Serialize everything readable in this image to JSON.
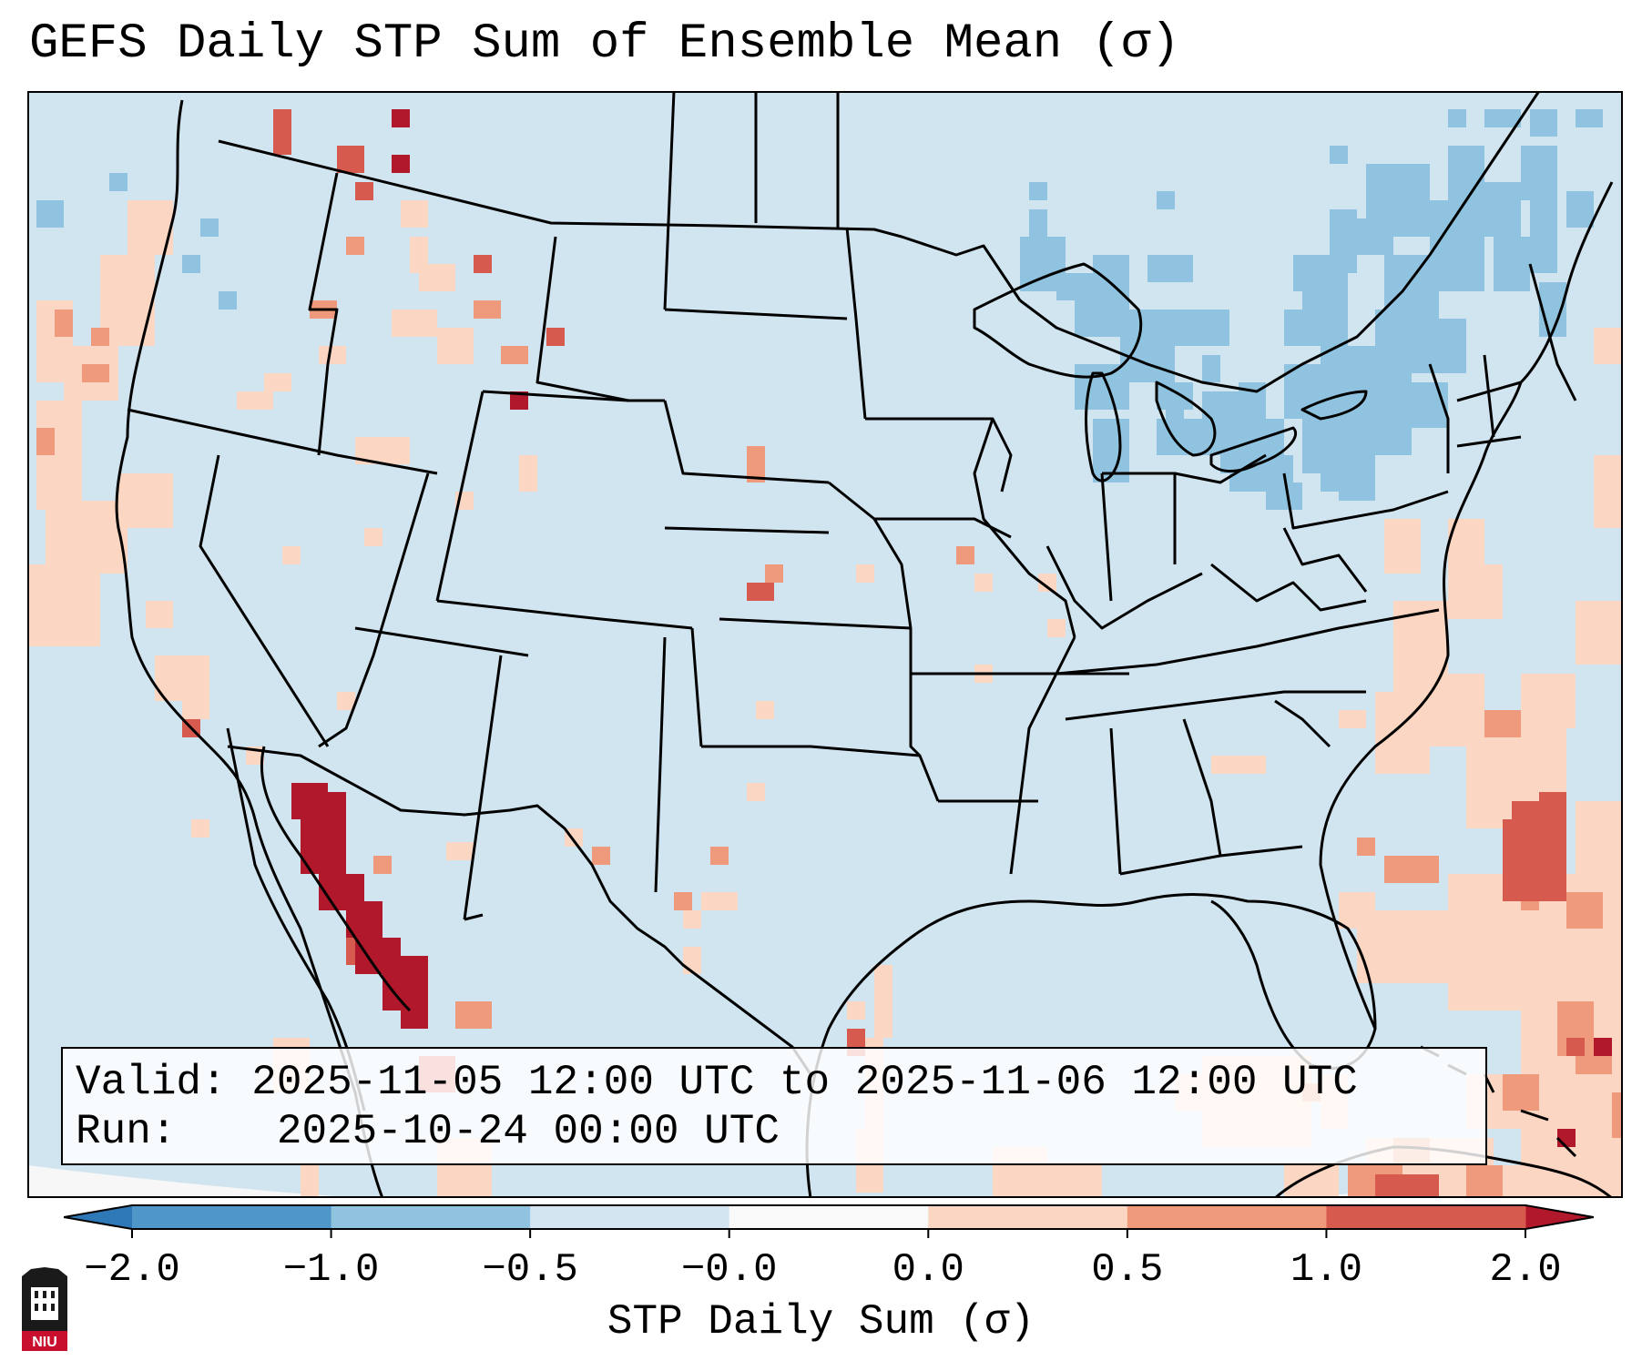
{
  "title": "GEFS Daily STP Sum of Ensemble Mean (σ)",
  "info": {
    "valid_label": "Valid:",
    "valid_value": "2025-11-05 12:00 UTC to 2025-11-06 12:00 UTC",
    "run_label": "Run:",
    "run_value": "2025-10-24 00:00 UTC"
  },
  "colorbar": {
    "label": "STP Daily Sum (σ)",
    "ticks": [
      "−2.0",
      "−1.0",
      "−0.5",
      "−0.0",
      "0.0",
      "0.5",
      "1.0",
      "2.0"
    ],
    "colors": [
      "#2f78b7",
      "#4f97c9",
      "#90c3df",
      "#d3e5f0",
      "#f9f9f9",
      "#fbd6c2",
      "#f09a7d",
      "#d65a4d",
      "#b2182b"
    ],
    "extend": "both"
  },
  "map": {
    "projection": "Lambert Conformal CONUS",
    "background_color": "#d1e5f0",
    "outside_color": "#f7f7f7",
    "region_labels": []
  },
  "logo": {
    "text": "NIU",
    "icon": "niu-huskie-logo-icon"
  }
}
